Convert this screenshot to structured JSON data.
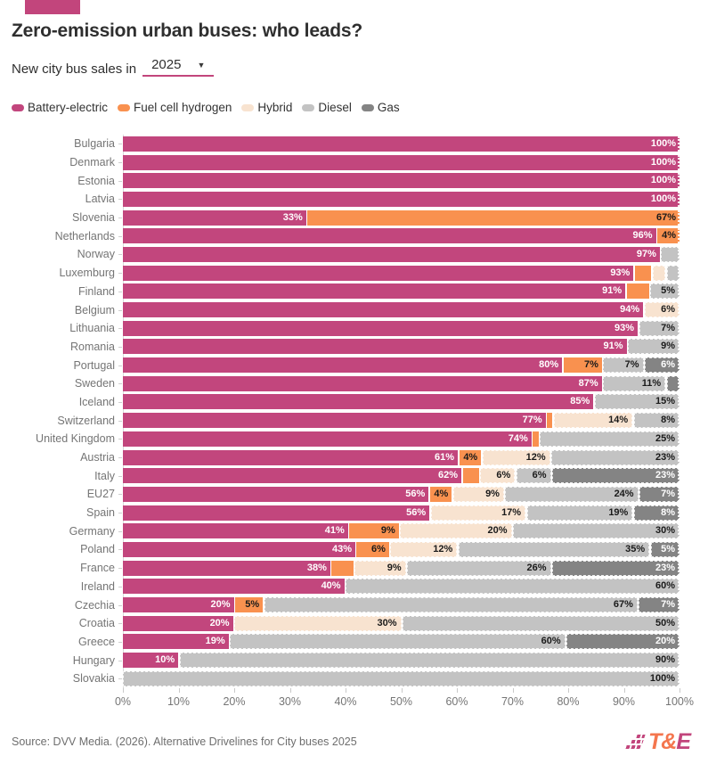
{
  "header": {
    "badge_color": "#c2457c",
    "title": "Zero-emission urban buses: who leads?"
  },
  "controls": {
    "prefix": "New city bus sales in",
    "year": "2025"
  },
  "colors": {
    "battery": "#c2467d",
    "fuelcell": "#f9914f",
    "hybrid": "#f8e3d0",
    "diesel": "#c3c3c3",
    "gas": "#848484"
  },
  "label_text_colors": {
    "battery": "#ffffff",
    "fuelcell": "#1a1a1a",
    "hybrid": "#1a1a1a",
    "diesel": "#1a1a1a",
    "gas": "#ffffff"
  },
  "legend": [
    {
      "key": "battery",
      "label": "Battery-electric"
    },
    {
      "key": "fuelcell",
      "label": "Fuel cell hydrogen"
    },
    {
      "key": "hybrid",
      "label": "Hybrid"
    },
    {
      "key": "diesel",
      "label": "Diesel"
    },
    {
      "key": "gas",
      "label": "Gas"
    }
  ],
  "chart_data": {
    "type": "bar",
    "subtype": "horizontal-stacked",
    "unit": "%",
    "xlim": [
      0,
      100
    ],
    "x_ticks": [
      "0%",
      "10%",
      "20%",
      "30%",
      "40%",
      "50%",
      "60%",
      "70%",
      "80%",
      "90%",
      "100%"
    ],
    "series_names": [
      "Battery-electric",
      "Fuel cell hydrogen",
      "Hybrid",
      "Diesel",
      "Gas"
    ],
    "rows": [
      {
        "country": "Bulgaria",
        "segments": [
          {
            "series": "battery",
            "value": 100,
            "label": "100%"
          }
        ]
      },
      {
        "country": "Denmark",
        "segments": [
          {
            "series": "battery",
            "value": 100,
            "label": "100%"
          }
        ]
      },
      {
        "country": "Estonia",
        "segments": [
          {
            "series": "battery",
            "value": 100,
            "label": "100%"
          }
        ]
      },
      {
        "country": "Latvia",
        "segments": [
          {
            "series": "battery",
            "value": 100,
            "label": "100%"
          }
        ]
      },
      {
        "country": "Slovenia",
        "segments": [
          {
            "series": "battery",
            "value": 33,
            "label": "33%"
          },
          {
            "series": "fuelcell",
            "value": 67,
            "label": "67%"
          }
        ]
      },
      {
        "country": "Netherlands",
        "segments": [
          {
            "series": "battery",
            "value": 96,
            "label": "96%"
          },
          {
            "series": "fuelcell",
            "value": 4,
            "label": "4%"
          }
        ]
      },
      {
        "country": "Norway",
        "segments": [
          {
            "series": "battery",
            "value": 97,
            "label": "97%"
          },
          {
            "series": "diesel",
            "value": 3,
            "label": ""
          }
        ]
      },
      {
        "country": "Luxemburg",
        "segments": [
          {
            "series": "battery",
            "value": 93,
            "label": "93%"
          },
          {
            "series": "fuelcell",
            "value": 3,
            "label": ""
          },
          {
            "series": "hybrid",
            "value": 2,
            "label": ""
          },
          {
            "series": "diesel",
            "value": 2,
            "label": ""
          }
        ]
      },
      {
        "country": "Finland",
        "segments": [
          {
            "series": "battery",
            "value": 91,
            "label": "91%"
          },
          {
            "series": "fuelcell",
            "value": 4,
            "label": ""
          },
          {
            "series": "diesel",
            "value": 5,
            "label": "5%"
          }
        ]
      },
      {
        "country": "Belgium",
        "segments": [
          {
            "series": "battery",
            "value": 94,
            "label": "94%"
          },
          {
            "series": "hybrid",
            "value": 6,
            "label": "6%"
          }
        ]
      },
      {
        "country": "Lithuania",
        "segments": [
          {
            "series": "battery",
            "value": 93,
            "label": "93%"
          },
          {
            "series": "diesel",
            "value": 7,
            "label": "7%"
          }
        ]
      },
      {
        "country": "Romania",
        "segments": [
          {
            "series": "battery",
            "value": 91,
            "label": "91%"
          },
          {
            "series": "diesel",
            "value": 9,
            "label": "9%"
          }
        ]
      },
      {
        "country": "Portugal",
        "segments": [
          {
            "series": "battery",
            "value": 80,
            "label": "80%"
          },
          {
            "series": "fuelcell",
            "value": 7,
            "label": "7%"
          },
          {
            "series": "diesel",
            "value": 7,
            "label": "7%"
          },
          {
            "series": "gas",
            "value": 6,
            "label": "6%"
          }
        ]
      },
      {
        "country": "Sweden",
        "segments": [
          {
            "series": "battery",
            "value": 87,
            "label": "87%"
          },
          {
            "series": "diesel",
            "value": 11,
            "label": "11%"
          },
          {
            "series": "gas",
            "value": 2,
            "label": ""
          }
        ]
      },
      {
        "country": "Iceland",
        "segments": [
          {
            "series": "battery",
            "value": 85,
            "label": "85%"
          },
          {
            "series": "diesel",
            "value": 15,
            "label": "15%"
          }
        ]
      },
      {
        "country": "Switzerland",
        "segments": [
          {
            "series": "battery",
            "value": 77,
            "label": "77%"
          },
          {
            "series": "fuelcell",
            "value": 1,
            "label": ""
          },
          {
            "series": "hybrid",
            "value": 14,
            "label": "14%"
          },
          {
            "series": "diesel",
            "value": 8,
            "label": "8%"
          }
        ]
      },
      {
        "country": "United Kingdom",
        "segments": [
          {
            "series": "battery",
            "value": 74,
            "label": "74%"
          },
          {
            "series": "fuelcell",
            "value": 1,
            "label": ""
          },
          {
            "series": "diesel",
            "value": 25,
            "label": "25%"
          }
        ]
      },
      {
        "country": "Austria",
        "segments": [
          {
            "series": "battery",
            "value": 61,
            "label": "61%"
          },
          {
            "series": "fuelcell",
            "value": 4,
            "label": "4%"
          },
          {
            "series": "hybrid",
            "value": 12,
            "label": "12%"
          },
          {
            "series": "diesel",
            "value": 23,
            "label": "23%"
          }
        ]
      },
      {
        "country": "Italy",
        "segments": [
          {
            "series": "battery",
            "value": 62,
            "label": "62%"
          },
          {
            "series": "fuelcell",
            "value": 3,
            "label": ""
          },
          {
            "series": "hybrid",
            "value": 6,
            "label": "6%"
          },
          {
            "series": "diesel",
            "value": 6,
            "label": "6%"
          },
          {
            "series": "gas",
            "value": 23,
            "label": "23%"
          }
        ]
      },
      {
        "country": "EU27",
        "segments": [
          {
            "series": "battery",
            "value": 56,
            "label": "56%"
          },
          {
            "series": "fuelcell",
            "value": 4,
            "label": "4%"
          },
          {
            "series": "hybrid",
            "value": 9,
            "label": "9%"
          },
          {
            "series": "diesel",
            "value": 24,
            "label": "24%"
          },
          {
            "series": "gas",
            "value": 7,
            "label": "7%"
          }
        ]
      },
      {
        "country": "Spain",
        "segments": [
          {
            "series": "battery",
            "value": 56,
            "label": "56%"
          },
          {
            "series": "hybrid",
            "value": 17,
            "label": "17%"
          },
          {
            "series": "diesel",
            "value": 19,
            "label": "19%"
          },
          {
            "series": "gas",
            "value": 8,
            "label": "8%"
          }
        ]
      },
      {
        "country": "Germany",
        "segments": [
          {
            "series": "battery",
            "value": 41,
            "label": "41%"
          },
          {
            "series": "fuelcell",
            "value": 9,
            "label": "9%"
          },
          {
            "series": "hybrid",
            "value": 20,
            "label": "20%"
          },
          {
            "series": "diesel",
            "value": 30,
            "label": "30%"
          }
        ]
      },
      {
        "country": "Poland",
        "segments": [
          {
            "series": "battery",
            "value": 43,
            "label": "43%"
          },
          {
            "series": "fuelcell",
            "value": 6,
            "label": "6%"
          },
          {
            "series": "hybrid",
            "value": 12,
            "label": "12%"
          },
          {
            "series": "diesel",
            "value": 35,
            "label": "35%"
          },
          {
            "series": "gas",
            "value": 5,
            "label": "5%"
          }
        ]
      },
      {
        "country": "France",
        "segments": [
          {
            "series": "battery",
            "value": 38,
            "label": "38%"
          },
          {
            "series": "fuelcell",
            "value": 4,
            "label": ""
          },
          {
            "series": "hybrid",
            "value": 9,
            "label": "9%"
          },
          {
            "series": "diesel",
            "value": 26,
            "label": "26%"
          },
          {
            "series": "gas",
            "value": 23,
            "label": "23%"
          }
        ]
      },
      {
        "country": "Ireland",
        "segments": [
          {
            "series": "battery",
            "value": 40,
            "label": "40%"
          },
          {
            "series": "diesel",
            "value": 60,
            "label": "60%"
          }
        ]
      },
      {
        "country": "Czechia",
        "segments": [
          {
            "series": "battery",
            "value": 20,
            "label": "20%"
          },
          {
            "series": "fuelcell",
            "value": 5,
            "label": "5%"
          },
          {
            "series": "diesel",
            "value": 67,
            "label": "67%"
          },
          {
            "series": "gas",
            "value": 7,
            "label": "7%"
          }
        ]
      },
      {
        "country": "Croatia",
        "segments": [
          {
            "series": "battery",
            "value": 20,
            "label": "20%"
          },
          {
            "series": "hybrid",
            "value": 30,
            "label": "30%"
          },
          {
            "series": "diesel",
            "value": 50,
            "label": "50%"
          }
        ]
      },
      {
        "country": "Greece",
        "segments": [
          {
            "series": "battery",
            "value": 19,
            "label": "19%"
          },
          {
            "series": "diesel",
            "value": 60,
            "label": "60%"
          },
          {
            "series": "gas",
            "value": 20,
            "label": "20%"
          }
        ]
      },
      {
        "country": "Hungary",
        "segments": [
          {
            "series": "battery",
            "value": 10,
            "label": "10%"
          },
          {
            "series": "diesel",
            "value": 90,
            "label": "90%"
          }
        ]
      },
      {
        "country": "Slovakia",
        "segments": [
          {
            "series": "diesel",
            "value": 100,
            "label": "100%"
          }
        ]
      }
    ]
  },
  "footer": {
    "source": "Source: DVV Media. (2026). Alternative Drivelines for City buses 2025",
    "logo_t_amp": "T&",
    "logo_e": "E",
    "logo_orange": "#f4764e",
    "logo_pink": "#c2457c"
  }
}
